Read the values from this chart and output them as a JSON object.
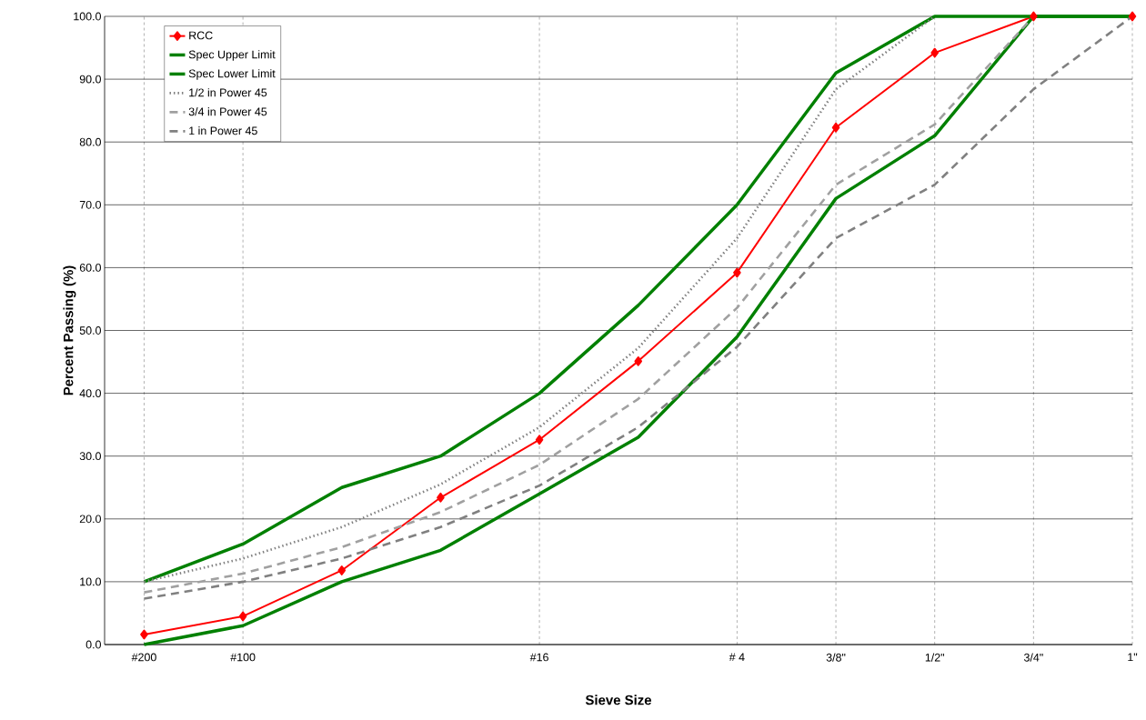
{
  "chart_data": {
    "type": "line",
    "xlabel": "Sieve Size",
    "ylabel": "Percent Passing (%)",
    "categories": [
      "#200",
      "#100",
      null,
      null,
      "#16",
      null,
      "# 4",
      "3/8\"",
      "1/2\"",
      "3/4\"",
      "1\""
    ],
    "series": [
      {
        "name": "RCC",
        "color": "#ff0000",
        "marker": "diamond",
        "line_style": "solid",
        "values": [
          1.6,
          4.5,
          11.8,
          23.4,
          32.6,
          45.1,
          59.2,
          82.3,
          94.2,
          100,
          100
        ]
      },
      {
        "name": "Spec Upper Limit",
        "color": "#008000",
        "marker": "none",
        "line_style": "solid",
        "values": [
          10,
          16,
          25,
          30,
          40,
          54,
          70,
          91,
          100,
          100,
          100
        ]
      },
      {
        "name": "Spec Lower Limit",
        "color": "#008000",
        "marker": "none",
        "line_style": "solid",
        "values": [
          0,
          3,
          10,
          15,
          24,
          33,
          49,
          71,
          81,
          100,
          100
        ]
      },
      {
        "name": "1/2 in Power 45",
        "color": "#808080",
        "marker": "none",
        "line_style": "dotted",
        "values": [
          10.0,
          13.7,
          18.7,
          25.5,
          34.6,
          47.2,
          64.7,
          88.4,
          100,
          null,
          null
        ]
      },
      {
        "name": "3/4 in Power 45",
        "color": "#a0a0a0",
        "marker": "none",
        "line_style": "dashed",
        "values": [
          8.3,
          11.3,
          15.5,
          21.1,
          28.6,
          39.1,
          53.6,
          73.2,
          82.8,
          100,
          null
        ]
      },
      {
        "name": "1 in Power 45",
        "color": "#808080",
        "marker": "none",
        "line_style": "dashed",
        "values": [
          7.3,
          10.0,
          13.7,
          18.7,
          25.3,
          34.6,
          47.4,
          64.7,
          73.2,
          88.4,
          100
        ]
      }
    ],
    "ylim": [
      0,
      100
    ],
    "yticks": [
      {
        "value": 0,
        "label": "0.0"
      },
      {
        "value": 10,
        "label": "10.0"
      },
      {
        "value": 20,
        "label": "20.0"
      },
      {
        "value": 30,
        "label": "30.0"
      },
      {
        "value": 40,
        "label": "40.0"
      },
      {
        "value": 50,
        "label": "50.0"
      },
      {
        "value": 60,
        "label": "60.0"
      },
      {
        "value": 70,
        "label": "70.0"
      },
      {
        "value": 80,
        "label": "80.0"
      },
      {
        "value": 90,
        "label": "90.0"
      },
      {
        "value": 100,
        "label": "100.0"
      }
    ],
    "grid": true,
    "legend": "top left"
  }
}
